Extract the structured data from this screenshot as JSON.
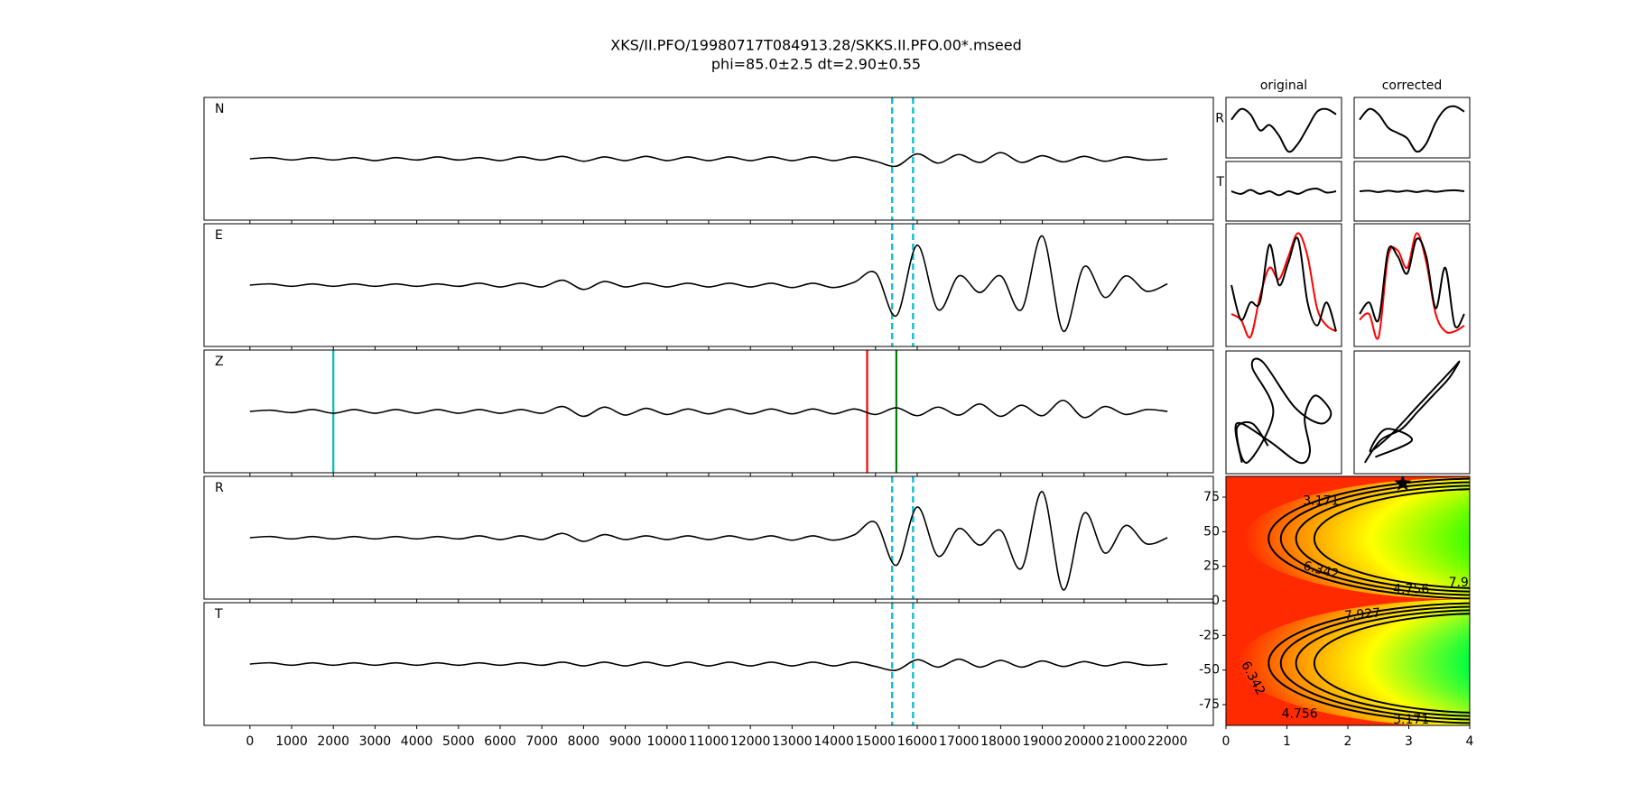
{
  "chart_data": [
    {
      "type": "line",
      "title": "XKS/II.PFO/19980717T084913.28/SKKS.II.PFO.00*.mseed",
      "subtitle": "phi=85.0±2.5 dt=2.90±0.55",
      "x": [
        0,
        500,
        1000,
        1500,
        2000,
        2500,
        3000,
        3500,
        4000,
        4500,
        5000,
        5500,
        6000,
        6500,
        7000,
        7500,
        8000,
        8500,
        9000,
        9500,
        10000,
        10500,
        11000,
        11500,
        12000,
        12500,
        13000,
        13500,
        14000,
        14500,
        15000,
        15500,
        16000,
        16500,
        17000,
        17500,
        18000,
        18500,
        19000,
        19500,
        20000,
        20500,
        21000,
        21500,
        22000
      ],
      "xlim": [
        -1100,
        23100
      ],
      "xticks": [
        0,
        1000,
        2000,
        3000,
        4000,
        5000,
        6000,
        7000,
        8000,
        9000,
        10000,
        11000,
        12000,
        13000,
        14000,
        15000,
        16000,
        17000,
        18000,
        19000,
        20000,
        21000,
        22000
      ],
      "ylim": [
        -1,
        1
      ],
      "color": "#000000",
      "panels": [
        {
          "label": "N",
          "values": [
            0,
            0.02,
            -0.02,
            0.02,
            -0.02,
            0.02,
            -0.03,
            0.02,
            -0.02,
            0.03,
            -0.02,
            0.02,
            -0.03,
            0.03,
            -0.02,
            0.04,
            -0.04,
            0.03,
            -0.03,
            0.04,
            -0.03,
            0.03,
            -0.03,
            0.03,
            -0.03,
            0.03,
            -0.03,
            0.03,
            -0.03,
            0.03,
            -0.04,
            -0.12,
            0.08,
            -0.07,
            0.07,
            -0.06,
            0.1,
            -0.06,
            0.05,
            -0.05,
            0.04,
            -0.04,
            0.03,
            -0.02,
            0
          ],
          "markers": [
            {
              "x": 15400,
              "color": "#17becf",
              "dashed": true
            },
            {
              "x": 15900,
              "color": "#17becf",
              "dashed": true
            }
          ]
        },
        {
          "label": "E",
          "values": [
            0,
            0.02,
            -0.02,
            0.02,
            -0.02,
            0.02,
            -0.02,
            0.02,
            -0.02,
            0.02,
            -0.02,
            0.03,
            -0.03,
            0.03,
            -0.03,
            0.08,
            -0.07,
            0.06,
            -0.03,
            0.03,
            -0.03,
            0.03,
            -0.03,
            0.03,
            -0.03,
            0.03,
            -0.04,
            0.03,
            -0.04,
            0.05,
            0.2,
            -0.5,
            0.65,
            -0.4,
            0.15,
            -0.12,
            0.15,
            -0.4,
            0.8,
            -0.75,
            0.3,
            -0.2,
            0.15,
            -0.1,
            0.02
          ],
          "markers": [
            {
              "x": 15400,
              "color": "#17becf",
              "dashed": true
            },
            {
              "x": 15900,
              "color": "#17becf",
              "dashed": true
            }
          ]
        },
        {
          "label": "Z",
          "values": [
            0,
            0.02,
            -0.02,
            0.03,
            -0.03,
            0.03,
            -0.03,
            0.03,
            -0.03,
            0.03,
            -0.03,
            0.03,
            -0.03,
            0.03,
            -0.03,
            0.08,
            -0.08,
            0.07,
            -0.06,
            0.05,
            -0.05,
            0.04,
            -0.04,
            0.04,
            -0.04,
            0.04,
            -0.04,
            0.04,
            -0.04,
            0.04,
            -0.05,
            0.06,
            -0.07,
            0.07,
            -0.06,
            0.12,
            -0.08,
            0.1,
            -0.07,
            0.18,
            -0.1,
            0.08,
            -0.05,
            0.03,
            0
          ],
          "markers": [
            {
              "x": 2000,
              "color": "#00bfbf",
              "dashed": false
            },
            {
              "x": 14800,
              "color": "#ff0000",
              "dashed": false
            },
            {
              "x": 15500,
              "color": "#008000",
              "dashed": false
            }
          ]
        },
        {
          "label": "R",
          "values": [
            0,
            0.02,
            -0.02,
            0.02,
            -0.02,
            0.02,
            -0.02,
            0.02,
            -0.02,
            0.02,
            -0.02,
            0.03,
            -0.03,
            0.03,
            -0.03,
            0.07,
            -0.06,
            0.05,
            -0.03,
            0.03,
            -0.03,
            0.03,
            -0.03,
            0.03,
            -0.03,
            0.03,
            -0.04,
            0.03,
            -0.04,
            0.05,
            0.25,
            -0.45,
            0.5,
            -0.3,
            0.15,
            -0.12,
            0.12,
            -0.5,
            0.75,
            -0.85,
            0.4,
            -0.25,
            0.2,
            -0.1,
            0
          ],
          "markers": [
            {
              "x": 15400,
              "color": "#17becf",
              "dashed": true
            },
            {
              "x": 15900,
              "color": "#17becf",
              "dashed": true
            }
          ]
        },
        {
          "label": "T",
          "values": [
            0,
            0.02,
            -0.02,
            0.02,
            -0.02,
            0.02,
            -0.02,
            0.02,
            -0.02,
            0.02,
            -0.02,
            0.02,
            -0.02,
            0.02,
            -0.02,
            0.03,
            -0.03,
            0.03,
            -0.03,
            0.03,
            -0.03,
            0.03,
            -0.03,
            0.03,
            -0.03,
            0.03,
            -0.03,
            0.03,
            -0.03,
            0.03,
            -0.04,
            -0.1,
            0.07,
            -0.05,
            0.08,
            -0.05,
            0.06,
            -0.05,
            0.05,
            -0.04,
            0.04,
            -0.03,
            0.03,
            -0.02,
            0
          ],
          "markers": [
            {
              "x": 15400,
              "color": "#17becf",
              "dashed": true
            },
            {
              "x": 15900,
              "color": "#17becf",
              "dashed": true
            }
          ]
        }
      ]
    },
    {
      "type": "particle",
      "row_labels": [
        "R",
        "T"
      ],
      "ylim": [
        -1,
        1
      ],
      "columns": [
        {
          "title": "original",
          "R": [
            0.3,
            0.7,
            0.5,
            -0.1,
            0.1,
            -0.3,
            -0.9,
            -0.6,
            0.0,
            0.6,
            0.7,
            0.5
          ],
          "T": [
            0,
            -0.1,
            0.05,
            -0.1,
            0.0,
            -0.15,
            0,
            -0.1,
            0.05,
            0.1,
            -0.05,
            0
          ],
          "lines": [
            {
              "color": "#ff0000",
              "values": [
                -0.5,
                -0.6,
                -0.9,
                -0.2,
                0.3,
                0.1,
                0.5,
                0.9,
                0.5,
                -0.4,
                -0.7,
                -0.8
              ]
            },
            {
              "color": "#000000",
              "values": [
                0.0,
                -0.6,
                -0.3,
                -0.3,
                0.7,
                0.0,
                0.4,
                0.8,
                -0.3,
                -0.7,
                -0.3,
                -0.8
              ]
            }
          ],
          "pm_x": [
            -0.8,
            -0.9,
            -0.3,
            0.3,
            0.5,
            0.4,
            0.6,
            0.9,
            0.7,
            0.2,
            -0.4,
            -0.6,
            -0.2,
            -0.7,
            -0.9,
            -0.6,
            -0.3
          ],
          "pm_y": [
            -0.9,
            -0.2,
            -0.5,
            -0.9,
            -0.7,
            -0.1,
            0.3,
            0.0,
            -0.2,
            0.1,
            0.9,
            0.8,
            0.0,
            -0.9,
            -0.3,
            -0.2,
            -0.6
          ]
        },
        {
          "title": "corrected",
          "R": [
            0.3,
            0.7,
            0.5,
            0.0,
            -0.2,
            -0.4,
            -0.9,
            -0.6,
            0.2,
            0.7,
            0.8,
            0.6
          ],
          "T": [
            0,
            0.02,
            -0.03,
            0.02,
            -0.02,
            0.02,
            -0.03,
            0.02,
            -0.02,
            0.02,
            0.04,
            0
          ],
          "lines": [
            {
              "color": "#ff0000",
              "values": [
                -0.6,
                -0.5,
                -0.9,
                0.5,
                0.6,
                0.3,
                0.9,
                0.4,
                -0.5,
                -0.8,
                -0.8,
                -0.7
              ]
            },
            {
              "color": "#000000",
              "values": [
                -0.5,
                -0.3,
                -0.6,
                0.6,
                0.5,
                0.2,
                0.8,
                0.5,
                -0.4,
                0.3,
                -0.7,
                -0.5
              ]
            }
          ],
          "pm_x": [
            -0.9,
            -0.6,
            -0.2,
            0.1,
            0.4,
            0.7,
            0.9,
            0.8,
            0.5,
            0.1,
            -0.4,
            -0.8,
            -0.5,
            0.0,
            -0.7
          ],
          "pm_y": [
            -0.9,
            -0.5,
            -0.3,
            0.0,
            0.3,
            0.6,
            0.9,
            0.8,
            0.5,
            0.1,
            -0.4,
            -0.7,
            -0.3,
            -0.5,
            -0.8
          ]
        }
      ]
    },
    {
      "type": "contour",
      "xlim": [
        0,
        4
      ],
      "ylim": [
        -90,
        90
      ],
      "xticks": [
        0,
        1,
        2,
        3,
        4
      ],
      "yticks": [
        -75,
        -50,
        -25,
        0,
        25,
        50,
        75
      ],
      "levels": [
        3.171,
        4.756,
        6.342,
        7.927
      ],
      "best_x": 2.9,
      "best_y": 85
    }
  ]
}
